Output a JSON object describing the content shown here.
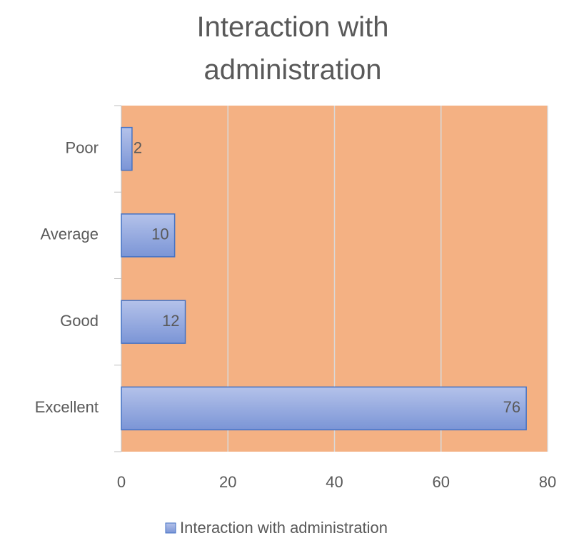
{
  "chart_data": {
    "type": "bar",
    "orientation": "horizontal",
    "title": "Interaction with administration",
    "categories": [
      "Excellent",
      "Good",
      "Average",
      "Poor"
    ],
    "series": [
      {
        "name": "Interaction with administration",
        "color": "#8fa5dd",
        "values": [
          76,
          12,
          10,
          2
        ]
      }
    ],
    "xlim": [
      0,
      80
    ],
    "xticks": [
      0,
      20,
      40,
      60,
      80
    ],
    "grid": true,
    "plot_background": "#f4b183",
    "legend": "bottom"
  }
}
